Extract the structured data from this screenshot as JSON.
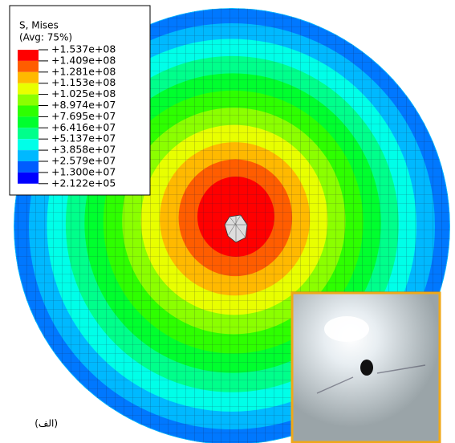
{
  "legend": {
    "title": "S, Mises",
    "subtitle": "(Avg: 75%)",
    "levels": [
      "+1.537e+08",
      "+1.409e+08",
      "+1.281e+08",
      "+1.153e+08",
      "+1.025e+08",
      "+8.974e+07",
      "+7.695e+07",
      "+6.416e+07",
      "+5.137e+07",
      "+3.858e+07",
      "+2.579e+07",
      "+1.300e+07",
      "+2.122e+05"
    ],
    "colors": [
      "#ff0000",
      "#ff5d00",
      "#ffb900",
      "#e8ff00",
      "#8bff00",
      "#2eff00",
      "#00ff2e",
      "#00ff8b",
      "#00ffe8",
      "#00b9ff",
      "#005dff",
      "#0000ff"
    ]
  },
  "caption": "(الف)"
}
